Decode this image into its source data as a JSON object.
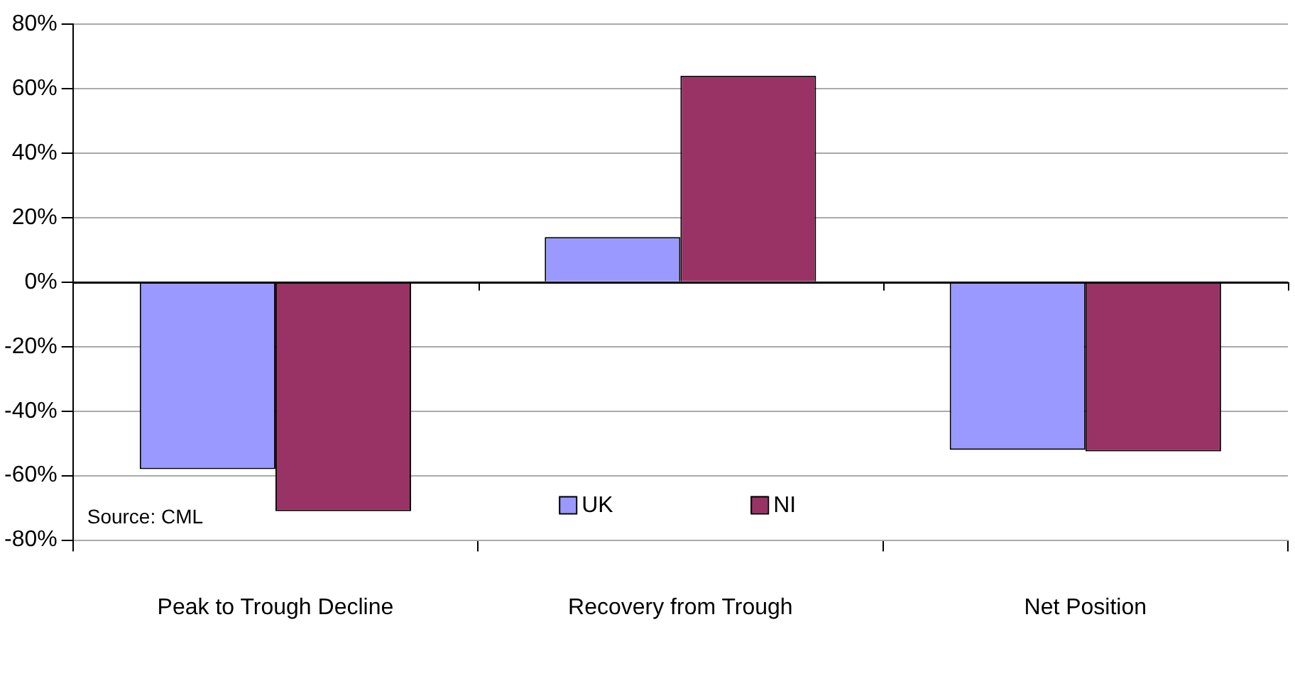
{
  "chart_data": {
    "type": "bar",
    "categories": [
      "Peak to Trough Decline",
      "Recovery from Trough",
      "Net Position"
    ],
    "series": [
      {
        "name": "UK",
        "color": "#9999ff",
        "values": [
          -58,
          14,
          -52
        ]
      },
      {
        "name": "NI",
        "color": "#993366",
        "values": [
          -71,
          64,
          -52.5
        ]
      }
    ],
    "ylim": [
      -80,
      80
    ],
    "yticks": [
      {
        "value": -80,
        "label": "-80%"
      },
      {
        "value": -60,
        "label": "-60%"
      },
      {
        "value": -40,
        "label": "-40%"
      },
      {
        "value": -20,
        "label": "-20%"
      },
      {
        "value": 0,
        "label": "0%"
      },
      {
        "value": 20,
        "label": "20%"
      },
      {
        "value": 40,
        "label": "40%"
      },
      {
        "value": 60,
        "label": "60%"
      },
      {
        "value": 80,
        "label": "80%"
      }
    ],
    "grid": "y",
    "legend": "bottom",
    "annotations": [
      "Source: CML"
    ]
  }
}
